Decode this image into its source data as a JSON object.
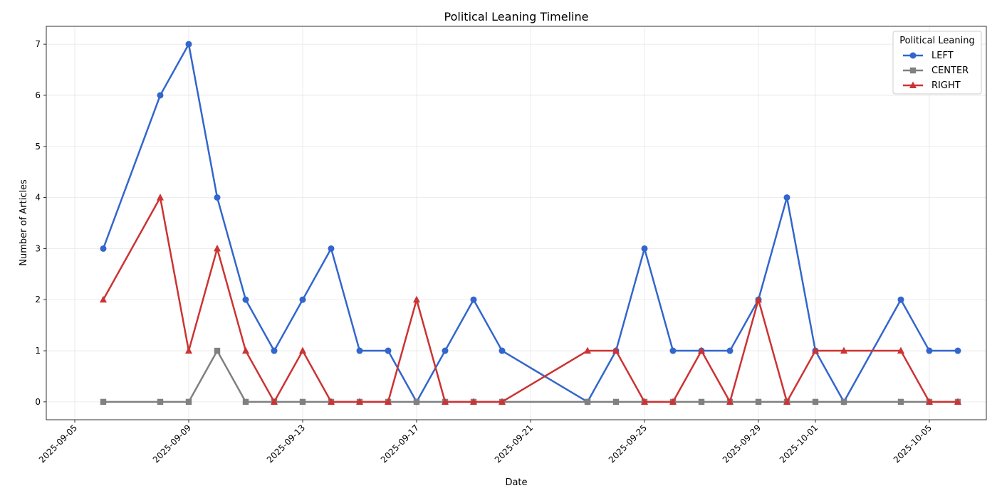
{
  "chart_data": {
    "type": "line",
    "title": "Political Leaning Timeline",
    "xlabel": "Date",
    "ylabel": "Number of Articles",
    "xlim": [
      "2025-09-04",
      "2025-10-07"
    ],
    "ylim": [
      -0.35,
      7.35
    ],
    "x_ticks": [
      "2025-09-05",
      "2025-09-09",
      "2025-09-13",
      "2025-09-17",
      "2025-09-21",
      "2025-09-25",
      "2025-09-29",
      "2025-10-01",
      "2025-10-05"
    ],
    "y_ticks": [
      0,
      1,
      2,
      3,
      4,
      5,
      6,
      7
    ],
    "grid": true,
    "legend": {
      "title": "Political Leaning",
      "position": "top-right"
    },
    "series": [
      {
        "name": "LEFT",
        "color": "#3366cc",
        "marker": "circle",
        "points": [
          [
            "2025-09-06",
            3
          ],
          [
            "2025-09-08",
            6
          ],
          [
            "2025-09-09",
            7
          ],
          [
            "2025-09-10",
            4
          ],
          [
            "2025-09-11",
            2
          ],
          [
            "2025-09-12",
            1
          ],
          [
            "2025-09-13",
            2
          ],
          [
            "2025-09-14",
            3
          ],
          [
            "2025-09-15",
            1
          ],
          [
            "2025-09-16",
            1
          ],
          [
            "2025-09-17",
            0
          ],
          [
            "2025-09-18",
            1
          ],
          [
            "2025-09-19",
            2
          ],
          [
            "2025-09-20",
            1
          ],
          [
            "2025-09-23",
            0
          ],
          [
            "2025-09-24",
            1
          ],
          [
            "2025-09-25",
            3
          ],
          [
            "2025-09-26",
            1
          ],
          [
            "2025-09-27",
            1
          ],
          [
            "2025-09-28",
            1
          ],
          [
            "2025-09-29",
            2
          ],
          [
            "2025-09-30",
            4
          ],
          [
            "2025-10-01",
            1
          ],
          [
            "2025-10-02",
            0
          ],
          [
            "2025-10-04",
            2
          ],
          [
            "2025-10-05",
            1
          ],
          [
            "2025-10-06",
            1
          ]
        ]
      },
      {
        "name": "CENTER",
        "color": "#808080",
        "marker": "square",
        "points": [
          [
            "2025-09-06",
            0
          ],
          [
            "2025-09-08",
            0
          ],
          [
            "2025-09-09",
            0
          ],
          [
            "2025-09-10",
            1
          ],
          [
            "2025-09-11",
            0
          ],
          [
            "2025-09-12",
            0
          ],
          [
            "2025-09-13",
            0
          ],
          [
            "2025-09-14",
            0
          ],
          [
            "2025-09-15",
            0
          ],
          [
            "2025-09-16",
            0
          ],
          [
            "2025-09-17",
            0
          ],
          [
            "2025-09-18",
            0
          ],
          [
            "2025-09-19",
            0
          ],
          [
            "2025-09-20",
            0
          ],
          [
            "2025-09-23",
            0
          ],
          [
            "2025-09-24",
            0
          ],
          [
            "2025-09-25",
            0
          ],
          [
            "2025-09-26",
            0
          ],
          [
            "2025-09-27",
            0
          ],
          [
            "2025-09-28",
            0
          ],
          [
            "2025-09-29",
            0
          ],
          [
            "2025-09-30",
            0
          ],
          [
            "2025-10-01",
            0
          ],
          [
            "2025-10-02",
            0
          ],
          [
            "2025-10-04",
            0
          ],
          [
            "2025-10-05",
            0
          ],
          [
            "2025-10-06",
            0
          ]
        ]
      },
      {
        "name": "RIGHT",
        "color": "#cc3333",
        "marker": "triangle",
        "points": [
          [
            "2025-09-06",
            2
          ],
          [
            "2025-09-08",
            4
          ],
          [
            "2025-09-09",
            1
          ],
          [
            "2025-09-10",
            3
          ],
          [
            "2025-09-11",
            1
          ],
          [
            "2025-09-12",
            0
          ],
          [
            "2025-09-13",
            1
          ],
          [
            "2025-09-14",
            0
          ],
          [
            "2025-09-15",
            0
          ],
          [
            "2025-09-16",
            0
          ],
          [
            "2025-09-17",
            2
          ],
          [
            "2025-09-18",
            0
          ],
          [
            "2025-09-19",
            0
          ],
          [
            "2025-09-20",
            0
          ],
          [
            "2025-09-23",
            1
          ],
          [
            "2025-09-24",
            1
          ],
          [
            "2025-09-25",
            0
          ],
          [
            "2025-09-26",
            0
          ],
          [
            "2025-09-27",
            1
          ],
          [
            "2025-09-28",
            0
          ],
          [
            "2025-09-29",
            2
          ],
          [
            "2025-09-30",
            0
          ],
          [
            "2025-10-01",
            1
          ],
          [
            "2025-10-02",
            1
          ],
          [
            "2025-10-04",
            1
          ],
          [
            "2025-10-05",
            0
          ],
          [
            "2025-10-06",
            0
          ]
        ]
      }
    ]
  }
}
